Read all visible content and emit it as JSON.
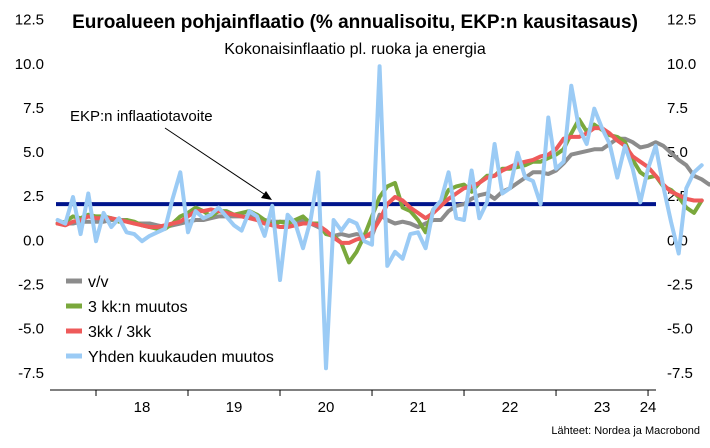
{
  "chart_data": {
    "type": "line",
    "title": "Euroalueen pohjainflaatio (% annualisoitu, EKP:n kausitasaus)",
    "subtitle": "Kokonaisinflaatio pl. ruoka ja energia",
    "source": "Lähteet: Nordea ja Macrobond",
    "annotation": "EKP:n inflaatiotavoite",
    "target_value": 2.0,
    "target_color": "#00148c",
    "y_ticks": [
      "12.5",
      "10.0",
      "7.5",
      "5.0",
      "2.5",
      "0.0",
      "-2.5",
      "-5.0",
      "-7.5"
    ],
    "y_tick_values": [
      12.5,
      10,
      7.5,
      5,
      2.5,
      0,
      -2.5,
      -5,
      -7.5
    ],
    "ylim": [
      -8.3,
      13.1
    ],
    "x_labels": [
      "18",
      "19",
      "20",
      "21",
      "22",
      "23",
      "24"
    ],
    "x_label_positions": [
      2018.5,
      2019.5,
      2020.5,
      2021.5,
      2022.5,
      2023.5,
      2024.0
    ],
    "xlim": [
      2017.5,
      2024.13
    ],
    "x_start": 2017.583,
    "x_step": 0.08333,
    "legend_position": "bottom-left",
    "series": [
      {
        "name": "v/v",
        "color": "#8c8c8c",
        "width": 4,
        "values": [
          0.9,
          0.9,
          0.9,
          1.0,
          1.0,
          1.0,
          1.0,
          1.1,
          1.1,
          1.1,
          0.9,
          0.9,
          0.9,
          0.8,
          0.7,
          0.8,
          0.9,
          1.0,
          1.1,
          1.1,
          1.2,
          1.3,
          1.3,
          1.3,
          1.3,
          1.3,
          1.3,
          1.1,
          1.0,
          1.0,
          1.0,
          1.0,
          1.1,
          0.9,
          0.7,
          0.4,
          0.2,
          0.3,
          0.2,
          0.3,
          0.2,
          0.2,
          1.4,
          1.1,
          0.9,
          1.0,
          0.9,
          0.7,
          0.9,
          1.1,
          1.1,
          1.6,
          1.9,
          2.0,
          2.3,
          2.5,
          2.6,
          2.3,
          2.7,
          2.9,
          3.2,
          3.5,
          3.8,
          3.8,
          3.7,
          3.9,
          4.3,
          4.8,
          4.9,
          5.0,
          5.1,
          5.1,
          5.4,
          5.7,
          5.7,
          5.5,
          5.2,
          5.3,
          5.5,
          5.3,
          4.9,
          4.5,
          4.2,
          3.6,
          3.4,
          3.1,
          3.3,
          3.1,
          2.9
        ]
      },
      {
        "name": "3 kk:n muutos",
        "color": "#7aa83c",
        "width": 4,
        "values": [
          0.9,
          1.0,
          1.3,
          1.2,
          1.4,
          1.3,
          1.3,
          1.2,
          1.0,
          1.1,
          1.0,
          0.8,
          0.7,
          0.6,
          0.6,
          0.9,
          1.3,
          1.5,
          1.8,
          1.6,
          1.3,
          1.6,
          1.6,
          1.4,
          1.5,
          1.6,
          1.4,
          1.1,
          0.8,
          1.0,
          0.9,
          1.1,
          1.3,
          0.9,
          0.9,
          0.3,
          0.2,
          -0.2,
          -1.3,
          -0.7,
          0.2,
          1.3,
          2.4,
          3.0,
          3.2,
          1.8,
          1.6,
          1.1,
          0.4,
          1.7,
          2.0,
          2.8,
          3.0,
          3.1,
          2.7,
          3.2,
          3.6,
          3.6,
          4.0,
          4.0,
          4.1,
          4.2,
          4.4,
          4.4,
          4.6,
          4.8,
          5.1,
          6.0,
          6.8,
          6.1,
          6.5,
          6.2,
          5.9,
          5.8,
          5.5,
          4.5,
          3.8,
          3.5,
          3.6,
          3.0,
          2.8,
          2.4,
          1.8,
          1.5,
          2.2
        ]
      },
      {
        "name": "3kk / 3kk",
        "color": "#ee5a5a",
        "width": 4,
        "values": [
          0.9,
          0.8,
          1.0,
          1.1,
          1.3,
          1.2,
          1.2,
          1.2,
          1.1,
          1.0,
          0.9,
          0.8,
          0.7,
          0.7,
          0.8,
          0.9,
          1.0,
          1.3,
          1.6,
          1.6,
          1.7,
          1.6,
          1.5,
          1.4,
          1.3,
          1.2,
          1.1,
          0.9,
          0.8,
          0.7,
          0.7,
          0.8,
          0.9,
          0.9,
          0.8,
          0.5,
          0.1,
          -0.2,
          -0.2,
          0.0,
          0.1,
          0.4,
          1.1,
          2.0,
          2.4,
          2.2,
          1.8,
          1.5,
          1.2,
          1.5,
          1.9,
          2.3,
          2.6,
          2.9,
          3.0,
          3.2,
          3.5,
          3.6,
          3.9,
          4.1,
          4.3,
          4.4,
          4.5,
          4.7,
          4.8,
          5.1,
          5.7,
          5.8,
          5.8,
          6.0,
          6.3,
          6.3,
          6.0,
          5.6,
          5.3,
          4.7,
          4.4,
          4.1,
          3.6,
          3.1,
          2.7,
          2.5,
          2.3,
          2.2,
          2.2
        ]
      },
      {
        "name": "Yhden kuukauden muutos",
        "color": "#9bcbf5",
        "width": 4,
        "values": [
          1.1,
          0.9,
          2.4,
          0.3,
          2.6,
          -0.1,
          1.5,
          0.7,
          1.2,
          0.4,
          0.3,
          -0.1,
          0.2,
          0.4,
          0.6,
          2.3,
          3.8,
          0.4,
          1.6,
          1.2,
          1.4,
          1.8,
          1.3,
          0.8,
          0.5,
          1.6,
          1.3,
          0.2,
          1.9,
          -2.3,
          1.4,
          0.9,
          -0.5,
          1.1,
          3.8,
          -7.3,
          1.1,
          0.5,
          1.1,
          0.9,
          -0.1,
          -0.3,
          9.8,
          -1.5,
          -0.7,
          -1.1,
          0.3,
          0.4,
          -0.5,
          1.7,
          2.2,
          3.8,
          1.2,
          1.1,
          3.9,
          1.2,
          2.1,
          5.4,
          2.6,
          2.9,
          4.9,
          3.5,
          3.3,
          2.0,
          6.9,
          4.0,
          4.4,
          8.7,
          6.3,
          5.4,
          7.4,
          6.3,
          5.4,
          3.5,
          5.3,
          4.0,
          2.1,
          4.0,
          5.3,
          3.0,
          1.0,
          -0.8,
          2.9,
          3.8,
          4.2
        ]
      }
    ]
  }
}
